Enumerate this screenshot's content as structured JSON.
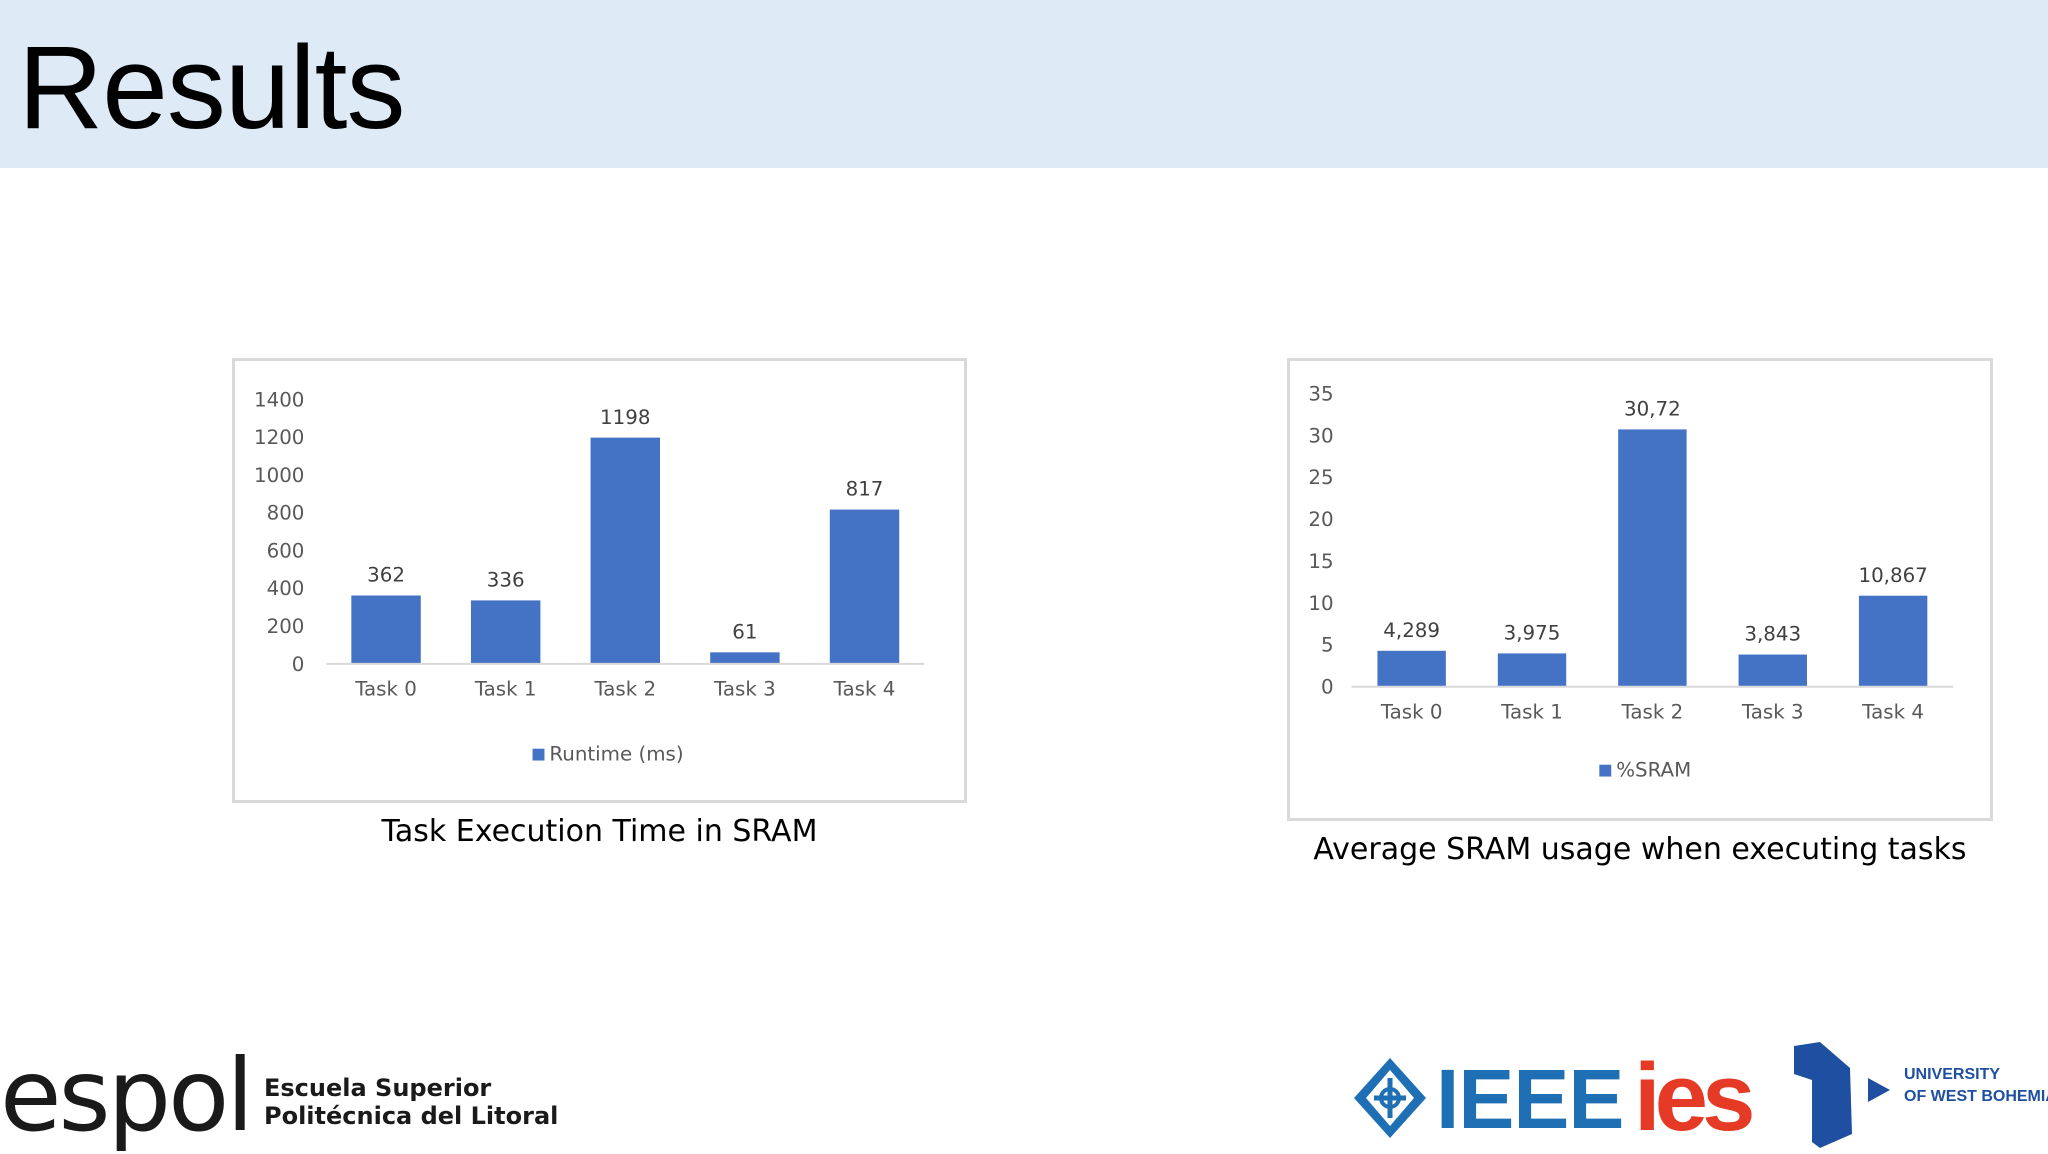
{
  "slide": {
    "title": "Results"
  },
  "charts": {
    "accent": "#4472c4",
    "runtime_caption": "Task Execution Time in SRAM",
    "sram_caption": "Average SRAM usage when executing tasks"
  },
  "chart_data": [
    {
      "type": "bar",
      "categories": [
        "Task 0",
        "Task 1",
        "Task 2",
        "Task 3",
        "Task 4"
      ],
      "series": [
        {
          "name": "Runtime (ms)",
          "values": [
            362,
            336,
            1198,
            61,
            817
          ]
        }
      ],
      "data_labels": [
        "362",
        "336",
        "1198",
        "61",
        "817"
      ],
      "yticks": [
        "0",
        "200",
        "400",
        "600",
        "800",
        "1000",
        "1200",
        "1400"
      ],
      "ylim": [
        0,
        1400
      ],
      "title": "",
      "xlabel": "",
      "ylabel": "",
      "grid": false,
      "legend": "bottom",
      "caption": "Task Execution Time in SRAM"
    },
    {
      "type": "bar",
      "categories": [
        "Task 0",
        "Task 1",
        "Task 2",
        "Task 3",
        "Task 4"
      ],
      "series": [
        {
          "name": "%SRAM",
          "values": [
            4.289,
            3.975,
            30.72,
            3.843,
            10.867
          ]
        }
      ],
      "data_labels": [
        "4,289",
        "3,975",
        "30,72",
        "3,843",
        "10,867"
      ],
      "yticks": [
        "0",
        "5",
        "10",
        "15",
        "20",
        "25",
        "30",
        "35"
      ],
      "ylim": [
        0,
        35
      ],
      "title": "",
      "xlabel": "",
      "ylabel": "",
      "grid": false,
      "legend": "bottom",
      "caption": "Average SRAM usage when executing tasks"
    }
  ],
  "footer": {
    "espol_wordmark": "espol",
    "espol_line1": "Escuela Superior",
    "espol_line2": "Politécnica del Litoral",
    "ieee_text": "IEEE",
    "ies_text": "ies",
    "uwb_line1": "UNIVERSITY",
    "uwb_line2": "OF WEST BOHEMIA",
    "ieee_color": "#1f6fb4",
    "ies_color": "#e53a26",
    "uwb_color": "#1f4fa0"
  }
}
